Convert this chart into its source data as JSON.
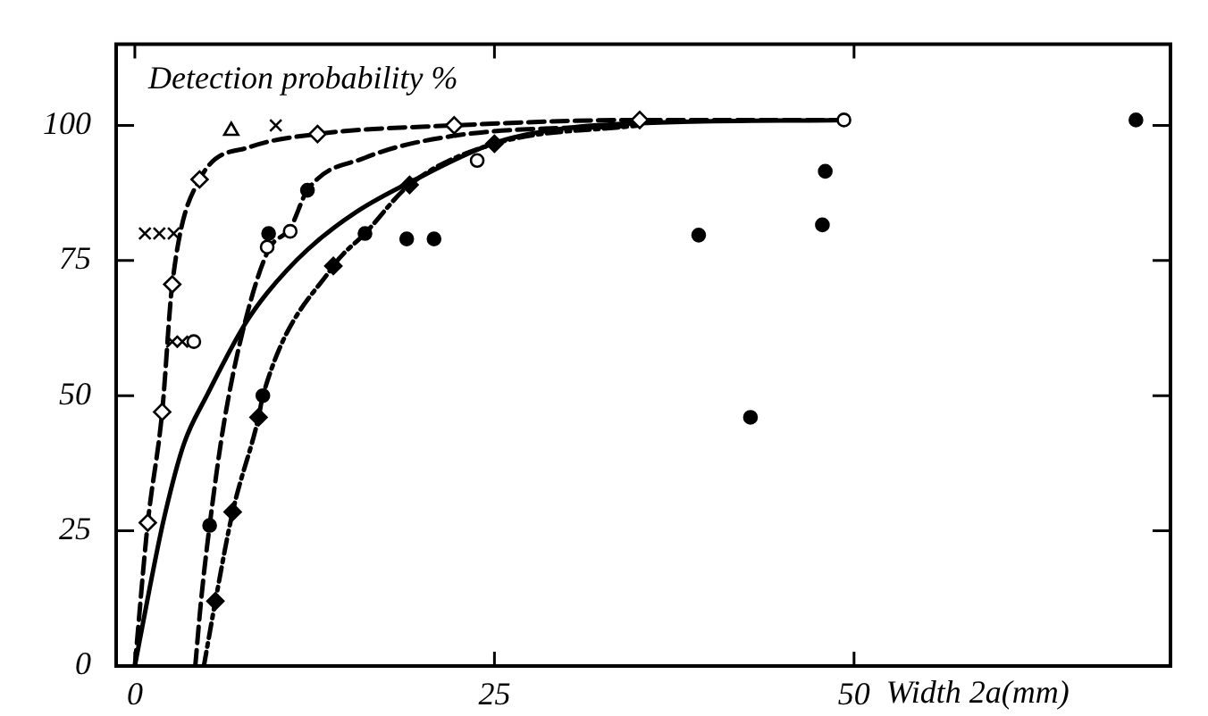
{
  "chart_data": {
    "type": "line",
    "xlabel": "Width 2a(mm)",
    "ylabel": "Detection probability %",
    "xlim": [
      -1.3,
      72
    ],
    "ylim": [
      0,
      115
    ],
    "xticks": [
      0,
      25,
      50
    ],
    "yticks": [
      0,
      25,
      50,
      75,
      100
    ],
    "grid": false,
    "legend": false,
    "series": [
      {
        "color": "#000000",
        "line_style": "dashed",
        "marker": "none",
        "x": [
          0,
          0.9,
          1.9,
          2.6,
          4.5,
          8,
          12.7,
          22.2,
          35.1,
          49.3
        ],
        "values": [
          0,
          26.5,
          47,
          70.6,
          90,
          96,
          98.4,
          100,
          101,
          101
        ]
      },
      {
        "color": "#000000",
        "line_style": "solid",
        "marker": "none",
        "x": [
          0,
          1,
          2,
          3.4,
          5,
          7.6,
          9.2,
          12,
          15.4,
          19.5,
          25.3,
          30,
          36,
          49.3
        ],
        "values": [
          0,
          14,
          27,
          41,
          50,
          63,
          69,
          77,
          84,
          90,
          97,
          99.5,
          100.5,
          101
        ]
      },
      {
        "color": "#000000",
        "line_style": "dashed",
        "marker": "none",
        "x": [
          4.2,
          4.6,
          5.2,
          6.2,
          7.6,
          9.3,
          10.8,
          12,
          16,
          22,
          35
        ],
        "values": [
          0,
          12,
          26,
          45,
          63,
          77,
          81,
          88,
          94,
          98,
          100
        ]
      },
      {
        "color": "#000000",
        "line_style": "dotted",
        "marker": "none",
        "x": [
          4.8,
          5.6,
          6.8,
          8.6,
          8.9,
          13.8,
          16,
          19.1,
          25,
          35
        ],
        "values": [
          0,
          12,
          28.5,
          46,
          50,
          74,
          80,
          89,
          96.6,
          100
        ]
      },
      {
        "type": "scatter",
        "color": "#000000",
        "marker": "circle",
        "x": [
          5.2,
          8.9,
          9.3,
          12,
          16,
          18.9,
          20.8,
          39.2,
          42.8,
          47.8,
          48,
          69.6
        ],
        "values": [
          26,
          50,
          80,
          88,
          80,
          79,
          79,
          79.7,
          46,
          81.6,
          91.5,
          101
        ]
      },
      {
        "type": "scatter",
        "color": "#000000",
        "marker": "diamond",
        "x": [
          5.6,
          6.8,
          8.6,
          13.8,
          19.1,
          25
        ],
        "values": [
          12,
          28.5,
          46,
          74,
          89,
          96.6
        ]
      },
      {
        "type": "scatter",
        "color": "#ffffff",
        "marker": "diamond",
        "x": [
          0.9,
          1.9,
          2.6,
          4.5,
          12.7,
          22.2,
          35.1
        ],
        "values": [
          26.5,
          47,
          70.6,
          90,
          98.4,
          100,
          101
        ]
      },
      {
        "type": "scatter",
        "color": "#ffffff",
        "marker": "circle",
        "x": [
          4.1,
          9.2,
          10.8,
          23.8,
          49.3
        ],
        "values": [
          60,
          77.5,
          80.4,
          93.5,
          101
        ]
      },
      {
        "type": "scatter",
        "color": "#000000",
        "marker": "cross",
        "x": [
          0.7,
          1.7,
          2.7,
          2.6,
          3.3,
          9.8
        ],
        "values": [
          80,
          80,
          80,
          60,
          60,
          100
        ]
      },
      {
        "type": "scatter",
        "color": "#ffffff",
        "marker": "triangle",
        "x": [
          6.7
        ],
        "values": [
          99
        ]
      }
    ]
  }
}
